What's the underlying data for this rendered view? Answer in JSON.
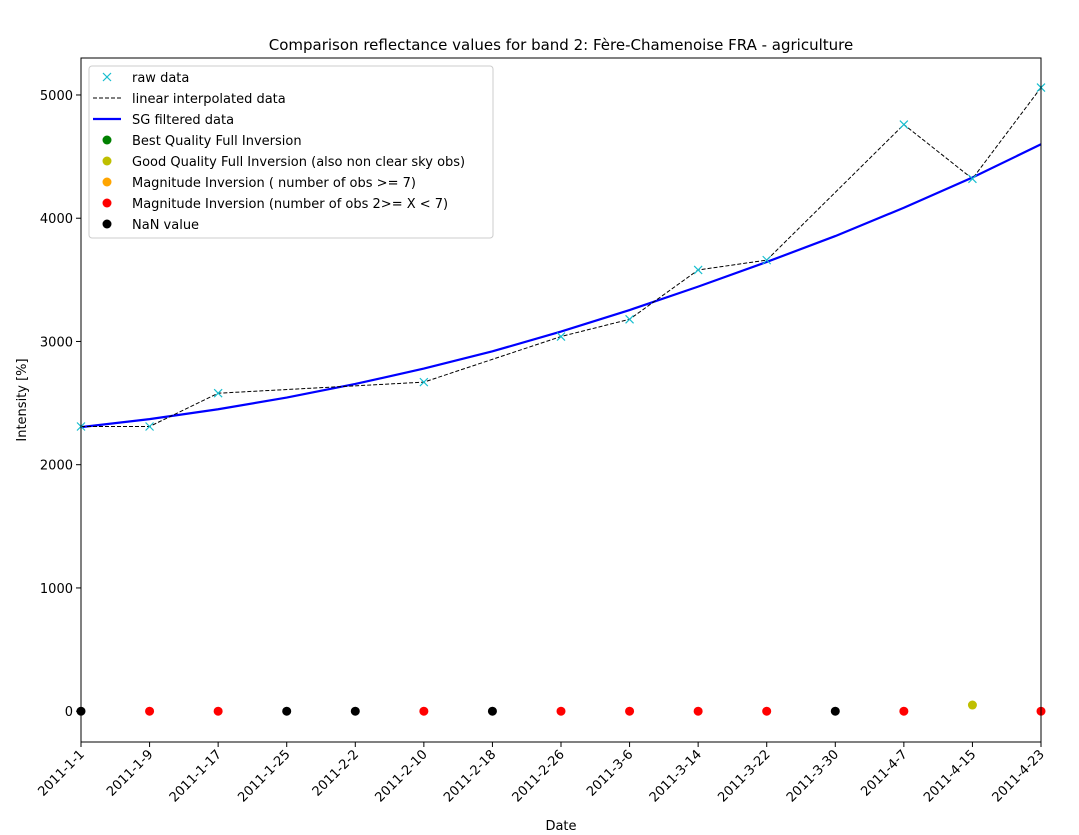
{
  "chart_data": {
    "type": "line",
    "title": "Comparison reflectance values for band 2: Fère-Chamenoise FRA - agriculture",
    "xlabel": "Date",
    "ylabel": "Intensity [%]",
    "x_ticks": [
      "2011-1-1",
      "2011-1-9",
      "2011-1-17",
      "2011-1-25",
      "2011-2-2",
      "2011-2-10",
      "2011-2-18",
      "2011-2-26",
      "2011-3-6",
      "2011-3-14",
      "2011-3-22",
      "2011-3-30",
      "2011-4-7",
      "2011-4-15",
      "2011-4-23"
    ],
    "xlim": [
      "2011-1-1",
      "2011-4-23"
    ],
    "ylim": [
      -250,
      5300
    ],
    "y_ticks": [
      0,
      1000,
      2000,
      3000,
      4000,
      5000
    ],
    "grid": false,
    "legend_position": "top-left",
    "legend": [
      {
        "label": "raw data",
        "style": "x-marker",
        "color": "#17becf"
      },
      {
        "label": "linear interpolated data",
        "style": "dashed-line",
        "color": "#000000"
      },
      {
        "label": "SG filtered data",
        "style": "solid-line",
        "color": "#0000ff"
      },
      {
        "label": "Best Quality Full Inversion",
        "style": "dot",
        "color": "#008000"
      },
      {
        "label": "Good Quality Full Inversion (also non clear sky obs)",
        "style": "dot",
        "color": "#bfbf00"
      },
      {
        "label": "Magnitude Inversion ( number of obs >= 7)",
        "style": "dot",
        "color": "#ffa500"
      },
      {
        "label": "Magnitude Inversion (number of obs 2>= X < 7)",
        "style": "dot",
        "color": "#ff0000"
      },
      {
        "label": "NaN value",
        "style": "dot",
        "color": "#000000"
      }
    ],
    "series": [
      {
        "name": "raw data",
        "x": [
          "2011-1-1",
          "2011-1-9",
          "2011-1-17",
          "2011-2-10",
          "2011-2-26",
          "2011-3-6",
          "2011-3-14",
          "2011-3-22",
          "2011-4-7",
          "2011-4-15",
          "2011-4-23"
        ],
        "values": [
          2310,
          2310,
          2580,
          2670,
          3040,
          3180,
          3580,
          3660,
          4760,
          4320,
          5060
        ]
      },
      {
        "name": "linear interpolated data",
        "x": [
          "2011-1-1",
          "2011-1-9",
          "2011-1-17",
          "2011-2-10",
          "2011-2-26",
          "2011-3-6",
          "2011-3-14",
          "2011-3-22",
          "2011-4-7",
          "2011-4-15",
          "2011-4-23"
        ],
        "values": [
          2310,
          2310,
          2580,
          2670,
          3040,
          3180,
          3580,
          3660,
          4760,
          4320,
          5060
        ]
      },
      {
        "name": "SG filtered data",
        "x": [
          "2011-1-1",
          "2011-1-9",
          "2011-1-17",
          "2011-1-25",
          "2011-2-2",
          "2011-2-10",
          "2011-2-18",
          "2011-2-26",
          "2011-3-6",
          "2011-3-14",
          "2011-3-22",
          "2011-3-30",
          "2011-4-7",
          "2011-4-15",
          "2011-4-23"
        ],
        "values": [
          2305,
          2370,
          2450,
          2545,
          2655,
          2780,
          2920,
          3080,
          3255,
          3445,
          3645,
          3855,
          4085,
          4330,
          4600
        ]
      }
    ],
    "quality_flags": {
      "x": [
        "2011-1-1",
        "2011-1-9",
        "2011-1-17",
        "2011-1-25",
        "2011-2-2",
        "2011-2-10",
        "2011-2-18",
        "2011-2-26",
        "2011-3-6",
        "2011-3-14",
        "2011-3-22",
        "2011-3-30",
        "2011-4-7",
        "2011-4-15",
        "2011-4-23"
      ],
      "y": [
        0,
        0,
        0,
        0,
        0,
        0,
        0,
        0,
        0,
        0,
        0,
        0,
        0,
        50,
        0
      ],
      "colors": [
        "#000000",
        "#ff0000",
        "#ff0000",
        "#000000",
        "#000000",
        "#ff0000",
        "#000000",
        "#ff0000",
        "#ff0000",
        "#ff0000",
        "#ff0000",
        "#000000",
        "#ff0000",
        "#bfbf00",
        "#ff0000"
      ]
    }
  }
}
